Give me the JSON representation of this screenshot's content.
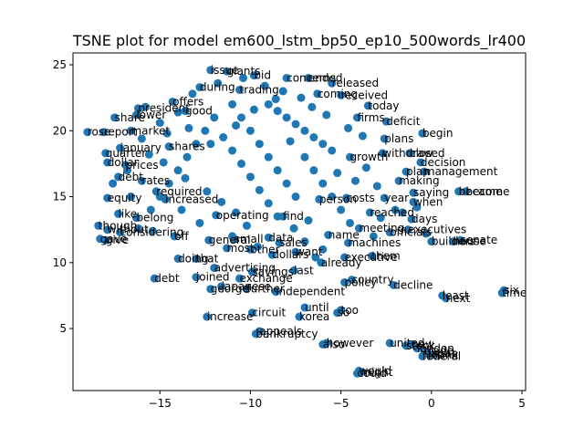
{
  "chart_data": {
    "type": "scatter",
    "title": "TSNE plot for model em600_lstm_bp50_ep10_500words_lr400",
    "xlabel": "",
    "ylabel": "",
    "xlim": [
      -19.8,
      5.2
    ],
    "ylim": [
      0.3,
      25.9
    ],
    "x_ticks": [
      -15,
      -10,
      -5,
      0,
      5
    ],
    "y_ticks": [
      5,
      10,
      15,
      20,
      25
    ],
    "grid": false,
    "points": [
      {
        "x": -12.2,
        "y": 24.6,
        "label": "issue"
      },
      {
        "x": -11.3,
        "y": 24.5,
        "label": "giants"
      },
      {
        "x": -9.8,
        "y": 24.2,
        "label": "bid"
      },
      {
        "x": -8.0,
        "y": 24.0,
        "label": "concerns"
      },
      {
        "x": -6.8,
        "y": 24.0,
        "label": "ended"
      },
      {
        "x": -5.5,
        "y": 23.6,
        "label": "released"
      },
      {
        "x": -12.8,
        "y": 23.3,
        "label": "during"
      },
      {
        "x": -10.6,
        "y": 23.1,
        "label": "trading"
      },
      {
        "x": -6.3,
        "y": 22.8,
        "label": "coming"
      },
      {
        "x": -14.3,
        "y": 22.2,
        "label": "offers"
      },
      {
        "x": -5.0,
        "y": 22.7,
        "label": "received"
      },
      {
        "x": -3.5,
        "y": 21.9,
        "label": "today"
      },
      {
        "x": -16.2,
        "y": 21.7,
        "label": "president"
      },
      {
        "x": -13.6,
        "y": 21.5,
        "label": "good"
      },
      {
        "x": -17.5,
        "y": 21.0,
        "label": "share"
      },
      {
        "x": -16.3,
        "y": 21.2,
        "label": "lower"
      },
      {
        "x": -4.1,
        "y": 21.0,
        "label": "firms"
      },
      {
        "x": -2.5,
        "y": 20.7,
        "label": "deficit"
      },
      {
        "x": -19.0,
        "y": 19.9,
        "label": "rose"
      },
      {
        "x": -18.1,
        "y": 19.9,
        "label": "report"
      },
      {
        "x": -16.6,
        "y": 20.0,
        "label": "market"
      },
      {
        "x": -0.5,
        "y": 19.8,
        "label": "begin"
      },
      {
        "x": -2.6,
        "y": 19.4,
        "label": "plans"
      },
      {
        "x": -17.2,
        "y": 18.7,
        "label": "january"
      },
      {
        "x": -14.5,
        "y": 18.8,
        "label": "shares"
      },
      {
        "x": -18.0,
        "y": 18.3,
        "label": "quarter"
      },
      {
        "x": -17.9,
        "y": 17.6,
        "label": "dollar"
      },
      {
        "x": -2.7,
        "y": 18.3,
        "label": "withdraw"
      },
      {
        "x": -1.2,
        "y": 18.3,
        "label": "closed"
      },
      {
        "x": -4.5,
        "y": 18.0,
        "label": "growth"
      },
      {
        "x": -16.9,
        "y": 17.4,
        "label": "prices"
      },
      {
        "x": -0.6,
        "y": 17.6,
        "label": "decision"
      },
      {
        "x": -17.3,
        "y": 16.5,
        "label": "debt"
      },
      {
        "x": -1.4,
        "y": 16.9,
        "label": "plan"
      },
      {
        "x": -0.4,
        "y": 16.9,
        "label": "management"
      },
      {
        "x": -16.0,
        "y": 16.2,
        "label": "rates"
      },
      {
        "x": -1.8,
        "y": 16.2,
        "label": "making"
      },
      {
        "x": -15.2,
        "y": 15.4,
        "label": "required"
      },
      {
        "x": -1.0,
        "y": 15.3,
        "label": "saying"
      },
      {
        "x": 1.5,
        "y": 15.4,
        "label": "became"
      },
      {
        "x": 1.9,
        "y": 15.4,
        "label": "become"
      },
      {
        "x": -17.9,
        "y": 14.9,
        "label": "equity"
      },
      {
        "x": -14.7,
        "y": 14.8,
        "label": "increased"
      },
      {
        "x": -6.2,
        "y": 14.8,
        "label": "person"
      },
      {
        "x": -4.7,
        "y": 14.9,
        "label": "costs"
      },
      {
        "x": -2.6,
        "y": 14.9,
        "label": "year"
      },
      {
        "x": -1.0,
        "y": 14.6,
        "label": "when"
      },
      {
        "x": -17.3,
        "y": 13.7,
        "label": "like"
      },
      {
        "x": -16.3,
        "y": 13.4,
        "label": "belong"
      },
      {
        "x": -11.9,
        "y": 13.6,
        "label": "operating"
      },
      {
        "x": -8.2,
        "y": 13.5,
        "label": "find"
      },
      {
        "x": -3.4,
        "y": 13.8,
        "label": "reached"
      },
      {
        "x": -1.1,
        "y": 13.3,
        "label": "days"
      },
      {
        "x": -18.4,
        "y": 12.8,
        "label": "though"
      },
      {
        "x": -17.9,
        "y": 12.5,
        "label": "without"
      },
      {
        "x": -17.2,
        "y": 12.3,
        "label": "considering"
      },
      {
        "x": -14.2,
        "y": 12.0,
        "label": "off"
      },
      {
        "x": -12.3,
        "y": 11.7,
        "label": "general"
      },
      {
        "x": -10.9,
        "y": 11.8,
        "label": "small"
      },
      {
        "x": -9.0,
        "y": 11.9,
        "label": "data"
      },
      {
        "x": -5.7,
        "y": 12.1,
        "label": "name"
      },
      {
        "x": -4.0,
        "y": 12.6,
        "label": "meeting"
      },
      {
        "x": -2.3,
        "y": 12.3,
        "label": "officials"
      },
      {
        "x": -1.3,
        "y": 12.5,
        "label": "executives"
      },
      {
        "x": -18.0,
        "y": 11.7,
        "label": "give"
      },
      {
        "x": -18.3,
        "y": 11.8,
        "label": "gave"
      },
      {
        "x": -8.4,
        "y": 11.5,
        "label": "sales"
      },
      {
        "x": -4.6,
        "y": 11.5,
        "label": "machines"
      },
      {
        "x": 0.0,
        "y": 11.6,
        "label": "builders"
      },
      {
        "x": 1.2,
        "y": 11.6,
        "label": "house"
      },
      {
        "x": 1.6,
        "y": 11.7,
        "label": "senate"
      },
      {
        "x": -11.3,
        "y": 11.1,
        "label": "most"
      },
      {
        "x": -10.0,
        "y": 11.0,
        "label": "other"
      },
      {
        "x": -8.8,
        "y": 10.6,
        "label": "dollars"
      },
      {
        "x": -7.5,
        "y": 10.8,
        "label": "want"
      },
      {
        "x": -4.8,
        "y": 10.4,
        "label": "executive"
      },
      {
        "x": -14.0,
        "y": 10.3,
        "label": "doing"
      },
      {
        "x": -13.0,
        "y": 10.3,
        "label": "that"
      },
      {
        "x": -6.1,
        "y": 10.0,
        "label": "already"
      },
      {
        "x": -3.3,
        "y": 10.5,
        "label": "them"
      },
      {
        "x": -12.0,
        "y": 9.6,
        "label": "advertising"
      },
      {
        "x": -9.9,
        "y": 9.3,
        "label": "savings"
      },
      {
        "x": -7.6,
        "y": 9.4,
        "label": "last"
      },
      {
        "x": -15.3,
        "y": 8.8,
        "label": "debt"
      },
      {
        "x": -13.0,
        "y": 8.9,
        "label": "joined"
      },
      {
        "x": -10.6,
        "y": 8.8,
        "label": "exchange"
      },
      {
        "x": -4.8,
        "y": 8.5,
        "label": "policy"
      },
      {
        "x": -4.4,
        "y": 8.7,
        "label": "country"
      },
      {
        "x": -2.1,
        "y": 8.3,
        "label": "decline"
      },
      {
        "x": -11.6,
        "y": 8.2,
        "label": "japanese"
      },
      {
        "x": -12.2,
        "y": 8.0,
        "label": "george"
      },
      {
        "x": -10.2,
        "y": 8.0,
        "label": "further"
      },
      {
        "x": -8.6,
        "y": 7.8,
        "label": "independent"
      },
      {
        "x": 0.6,
        "y": 7.5,
        "label": "least"
      },
      {
        "x": 0.8,
        "y": 7.3,
        "label": "next"
      },
      {
        "x": 3.9,
        "y": 7.7,
        "label": "time"
      },
      {
        "x": 4.0,
        "y": 7.9,
        "label": "six"
      },
      {
        "x": -7.0,
        "y": 6.6,
        "label": "until"
      },
      {
        "x": -5.0,
        "y": 6.4,
        "label": "too"
      },
      {
        "x": -5.2,
        "y": 6.2,
        "label": "so"
      },
      {
        "x": -12.4,
        "y": 5.9,
        "label": "increase"
      },
      {
        "x": -9.9,
        "y": 6.2,
        "label": "circuit"
      },
      {
        "x": -7.3,
        "y": 5.9,
        "label": "korea"
      },
      {
        "x": -9.7,
        "y": 4.6,
        "label": "bankruptcy"
      },
      {
        "x": -9.5,
        "y": 4.8,
        "label": "appeals"
      },
      {
        "x": -6.0,
        "y": 3.8,
        "label": "also"
      },
      {
        "x": -5.8,
        "y": 3.9,
        "label": "however"
      },
      {
        "x": -2.3,
        "y": 3.9,
        "label": "united"
      },
      {
        "x": -1.4,
        "y": 3.7,
        "label": "stock"
      },
      {
        "x": -0.8,
        "y": 3.5,
        "label": "london"
      },
      {
        "x": -1.1,
        "y": 3.8,
        "label": "new"
      },
      {
        "x": -0.4,
        "y": 3.3,
        "label": "trade"
      },
      {
        "x": 0.0,
        "y": 3.0,
        "label": "bank"
      },
      {
        "x": -0.5,
        "y": 2.9,
        "label": "federal"
      },
      {
        "x": -0.2,
        "y": 3.1,
        "label": "japan"
      },
      {
        "x": -4.1,
        "y": 1.6,
        "label": "could"
      },
      {
        "x": -4.0,
        "y": 1.8,
        "label": "would"
      },
      {
        "x": -3.9,
        "y": 1.7,
        "label": "might"
      }
    ],
    "unlabeled_points": [
      [
        -9,
        22
      ],
      [
        -8.5,
        21.5
      ],
      [
        -8,
        21
      ],
      [
        -7.5,
        20.5
      ],
      [
        -7,
        20
      ],
      [
        -6.5,
        19.5
      ],
      [
        -6,
        19
      ],
      [
        -5.5,
        18.5
      ],
      [
        -11,
        22
      ],
      [
        -10.5,
        21
      ],
      [
        -10,
        20
      ],
      [
        -9.5,
        19
      ],
      [
        -9,
        18
      ],
      [
        -8.5,
        17
      ],
      [
        -8,
        16
      ],
      [
        -7.5,
        15
      ],
      [
        -12,
        21
      ],
      [
        -12.5,
        20
      ],
      [
        -13,
        19
      ],
      [
        -13.5,
        18
      ],
      [
        -14,
        17
      ],
      [
        -14.5,
        16
      ],
      [
        -15,
        15
      ],
      [
        -15.5,
        14
      ],
      [
        -11.5,
        19.5
      ],
      [
        -11,
        18.5
      ],
      [
        -10.5,
        17.5
      ],
      [
        -10,
        16.5
      ],
      [
        -9.5,
        15.5
      ],
      [
        -9,
        14.5
      ],
      [
        -8.5,
        13.5
      ],
      [
        -7,
        18
      ],
      [
        -6.5,
        17
      ],
      [
        -6,
        16
      ],
      [
        -5.5,
        15
      ],
      [
        -5,
        14
      ],
      [
        -4.5,
        13
      ],
      [
        -7.2,
        22.5
      ],
      [
        -8.2,
        23
      ],
      [
        -13.2,
        22.8
      ],
      [
        -14,
        21.4
      ],
      [
        -15,
        20.6
      ],
      [
        -16,
        19.4
      ],
      [
        -15.6,
        18.2
      ],
      [
        -14.8,
        17.6
      ],
      [
        -13.6,
        16.4
      ],
      [
        -12.4,
        15.4
      ],
      [
        -11.6,
        14.6
      ],
      [
        -10.8,
        13.8
      ],
      [
        -10.2,
        12.8
      ],
      [
        -12.8,
        13
      ],
      [
        -13.8,
        14
      ],
      [
        -16.6,
        15
      ],
      [
        -7.6,
        12.6
      ],
      [
        -6.8,
        13.2
      ],
      [
        -6,
        11
      ],
      [
        -5.2,
        16.8
      ],
      [
        -4.2,
        16.2
      ],
      [
        -3.6,
        17.2
      ],
      [
        -3,
        15.8
      ],
      [
        -2,
        14
      ],
      [
        -1.6,
        13.8
      ],
      [
        -3.8,
        19.6
      ],
      [
        -4.6,
        20.2
      ],
      [
        -5.8,
        21.2
      ],
      [
        -6.6,
        21.8
      ],
      [
        -11.8,
        23.6
      ],
      [
        -10.4,
        24
      ],
      [
        -9.2,
        23.4
      ],
      [
        -8.6,
        22.4
      ],
      [
        -7.8,
        19.2
      ],
      [
        -9.8,
        21.6
      ],
      [
        -10.8,
        20.4
      ],
      [
        -12.2,
        19
      ],
      [
        -13.4,
        20.2
      ],
      [
        -14.6,
        19.8
      ],
      [
        -15.8,
        21.8
      ],
      [
        -16.8,
        17
      ],
      [
        -17.6,
        16
      ],
      [
        -16.2,
        12.6
      ],
      [
        -15.4,
        12.4
      ],
      [
        -11,
        12
      ],
      [
        -9.6,
        11.2
      ],
      [
        -7,
        11.6
      ],
      [
        -6.4,
        10.4
      ],
      [
        -3.2,
        12
      ],
      [
        -2.8,
        13.4
      ],
      [
        -0.8,
        14.2
      ],
      [
        -0.3,
        12.2
      ]
    ]
  }
}
